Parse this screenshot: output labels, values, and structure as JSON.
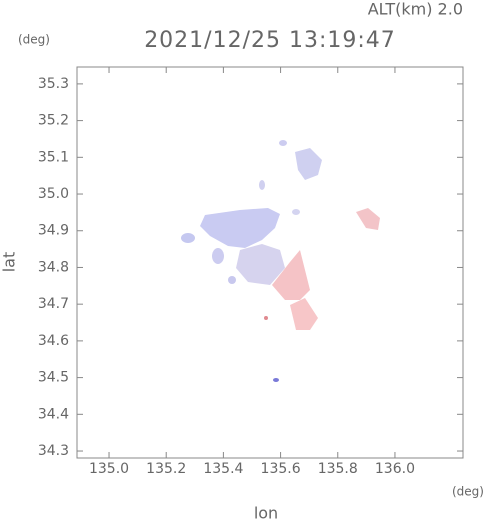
{
  "chart_data": {
    "type": "radar-map",
    "altitude_label": "ALT(km) 2.0",
    "title": "2021/12/25 13:19:47",
    "y_unit": "(deg)",
    "x_unit": "(deg)",
    "xlabel": "lon",
    "ylabel": "lat",
    "xlim": [
      134.888,
      136.238
    ],
    "ylim": [
      34.281,
      35.346
    ],
    "xticks": [
      {
        "value": 135,
        "label": "135.0"
      },
      135.2,
      135.4,
      135.6,
      135.8,
      {
        "value": 136,
        "label": "136.0"
      }
    ],
    "yticks": [
      34.3,
      34.4,
      34.5,
      34.6,
      34.7,
      34.8,
      34.9,
      {
        "value": 35,
        "label": "35.0"
      },
      35.1,
      35.2,
      35.3
    ]
  }
}
